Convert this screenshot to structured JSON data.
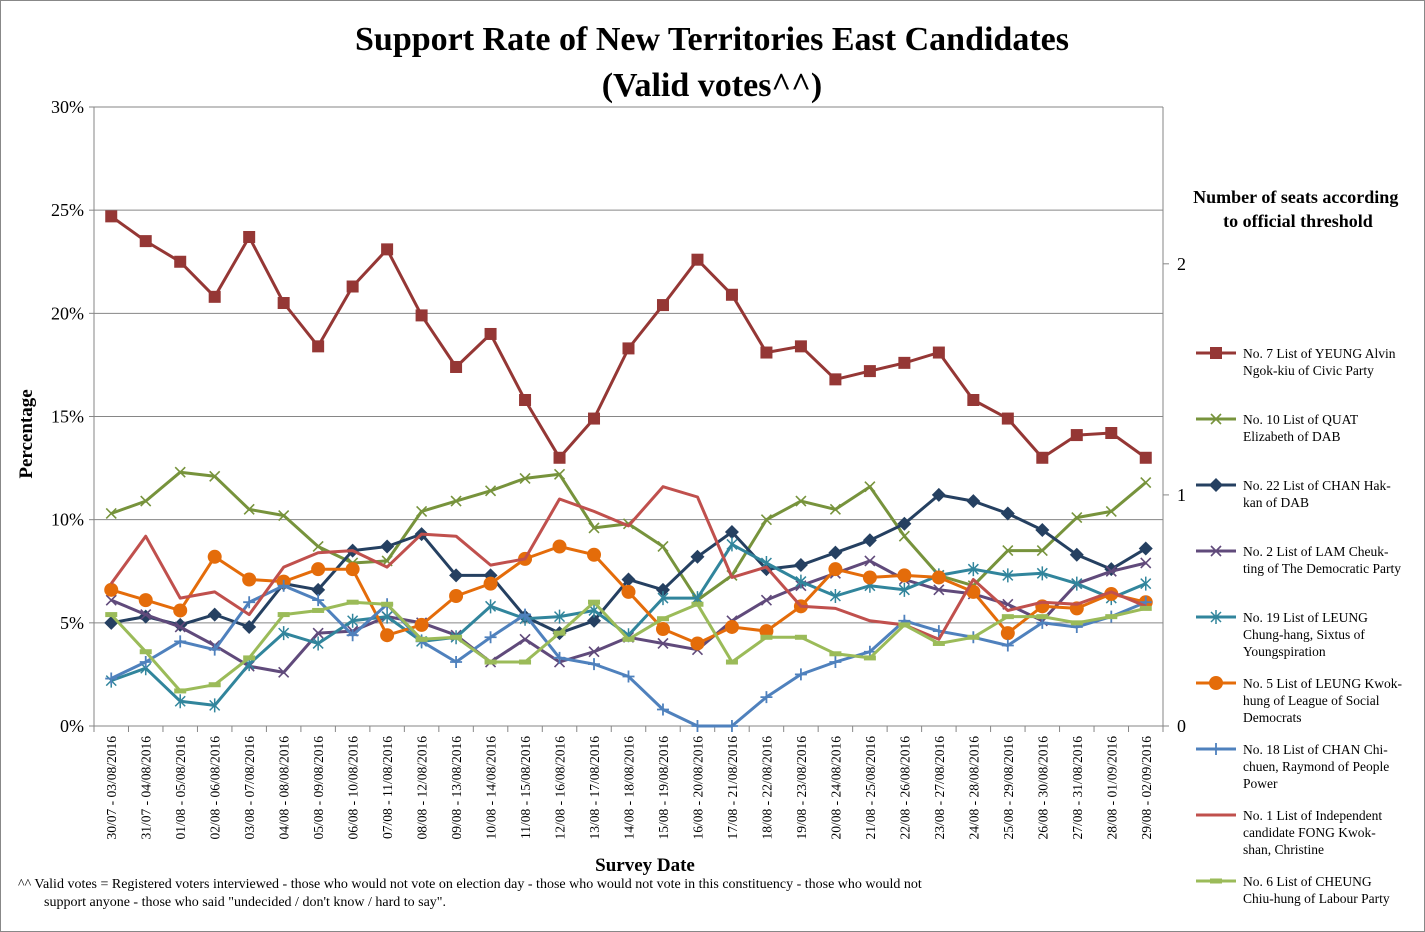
{
  "chart_data": {
    "type": "line",
    "title": "Support Rate of New Territories East Candidates",
    "subtitle": "(Valid votes^^)",
    "xlabel": "Survey Date",
    "ylabel": "Percentage",
    "y_left": {
      "min": 0,
      "max": 30,
      "ticks": [
        "0%",
        "5%",
        "10%",
        "15%",
        "20%",
        "25%",
        "30%"
      ]
    },
    "y_right": {
      "title": "Number of seats according to official threshold",
      "ticks": [
        "0",
        "1",
        "2"
      ],
      "seat_threshold_percent": 11.2
    },
    "grid": true,
    "legend_position": "right",
    "categories": [
      "30/07 - 03/08/2016",
      "31/07 - 04/08/2016",
      "01/08 - 05/08/2016",
      "02/08 - 06/08/2016",
      "03/08 - 07/08/2016",
      "04/08 - 08/08/2016",
      "05/08 - 09/08/2016",
      "06/08 - 10/08/2016",
      "07/08 - 11/08/2016",
      "08/08 - 12/08/2016",
      "09/08 - 13/08/2016",
      "10/08 - 14/08/2016",
      "11/08 - 15/08/2016",
      "12/08 - 16/08/2016",
      "13/08 - 17/08/2016",
      "14/08 - 18/08/2016",
      "15/08 - 19/08/2016",
      "16/08 - 20/08/2016",
      "17/08 - 21/08/2016",
      "18/08 - 22/08/2016",
      "19/08 - 23/08/2016",
      "20/08 - 24/08/2016",
      "21/08 - 25/08/2016",
      "22/08 - 26/08/2016",
      "23/08 - 27/08/2016",
      "24/08 - 28/08/2016",
      "25/08 - 29/08/2016",
      "26/08 - 30/08/2016",
      "27/08 - 31/08/2016",
      "28/08 - 01/09/2016",
      "29/08 - 02/09/2016"
    ],
    "series": [
      {
        "name": "No. 7 List of YEUNG Alvin Ngok-kiu of Civic Party",
        "color": "#953735",
        "marker": "square",
        "values": [
          24.7,
          23.5,
          22.5,
          20.8,
          23.7,
          20.5,
          18.4,
          21.3,
          23.1,
          19.9,
          17.4,
          19.0,
          15.8,
          13.0,
          14.9,
          18.3,
          20.4,
          22.6,
          20.9,
          18.1,
          18.4,
          16.8,
          17.2,
          17.6,
          18.1,
          15.8,
          14.9,
          13.0,
          14.1,
          14.2,
          13.0
        ]
      },
      {
        "name": "No. 10 List of QUAT Elizabeth of DAB",
        "color": "#77933c",
        "marker": "x",
        "values": [
          10.3,
          10.9,
          12.3,
          12.1,
          10.5,
          10.2,
          8.7,
          7.9,
          8.0,
          10.4,
          10.9,
          11.4,
          12.0,
          12.2,
          9.6,
          9.8,
          8.7,
          6.1,
          7.3,
          10.0,
          10.9,
          10.5,
          11.6,
          9.2,
          7.3,
          6.8,
          8.5,
          8.5,
          10.1,
          10.4,
          11.8
        ]
      },
      {
        "name": "No. 22 List of CHAN Hak-kan of DAB",
        "color": "#254061",
        "marker": "diamond",
        "values": [
          5.0,
          5.3,
          4.9,
          5.4,
          4.8,
          6.9,
          6.6,
          8.5,
          8.7,
          9.3,
          7.3,
          7.3,
          5.3,
          4.5,
          5.1,
          7.1,
          6.6,
          8.2,
          9.4,
          7.6,
          7.8,
          8.4,
          9.0,
          9.8,
          11.2,
          10.9,
          10.3,
          9.5,
          8.3,
          7.6,
          8.6
        ]
      },
      {
        "name": "No. 2 List of LAM Cheuk-ting of The Democratic Party",
        "color": "#604a7b",
        "marker": "x",
        "values": [
          6.1,
          5.4,
          4.8,
          3.9,
          2.9,
          2.6,
          4.5,
          4.6,
          5.3,
          5.0,
          4.4,
          3.1,
          4.2,
          3.1,
          3.6,
          4.3,
          4.0,
          3.7,
          5.1,
          6.1,
          6.8,
          7.4,
          8.0,
          7.1,
          6.6,
          6.4,
          5.9,
          5.1,
          6.9,
          7.5,
          7.9
        ]
      },
      {
        "name": "No. 19 List of LEUNG Chung-hang, Sixtus of Youngspiration",
        "color": "#31859c",
        "marker": "star",
        "values": [
          2.2,
          2.8,
          1.2,
          1.0,
          3.0,
          4.5,
          4.0,
          5.1,
          5.3,
          4.1,
          4.3,
          5.8,
          5.2,
          5.3,
          5.6,
          4.4,
          6.2,
          6.2,
          8.8,
          7.9,
          7.0,
          6.3,
          6.8,
          6.6,
          7.3,
          7.6,
          7.3,
          7.4,
          6.9,
          6.2,
          6.9
        ]
      },
      {
        "name": "No. 5 List of LEUNG Kwok-hung of League of Social Democrats",
        "color": "#e46c0a",
        "marker": "circle",
        "values": [
          6.6,
          6.1,
          5.6,
          8.2,
          7.1,
          7.0,
          7.6,
          7.6,
          4.4,
          4.9,
          6.3,
          6.9,
          8.1,
          8.7,
          8.3,
          6.5,
          4.7,
          4.0,
          4.8,
          4.6,
          5.8,
          7.6,
          7.2,
          7.3,
          7.2,
          6.5,
          4.5,
          5.8,
          5.7,
          6.4,
          6.0
        ]
      },
      {
        "name": "No. 18 List of CHAN Chi-chuen, Raymond of People Power",
        "color": "#4f81bd",
        "marker": "plus",
        "values": [
          2.3,
          3.1,
          4.1,
          3.7,
          6.0,
          6.8,
          6.1,
          4.4,
          5.9,
          4.1,
          3.1,
          4.3,
          5.4,
          3.3,
          3.0,
          2.4,
          0.8,
          0.0,
          0.0,
          1.4,
          2.5,
          3.1,
          3.6,
          5.1,
          4.6,
          4.3,
          3.9,
          5.0,
          4.8,
          5.3,
          6.0
        ]
      },
      {
        "name": "No. 1 List of Independent candidate FONG Kwok-shan, Christine",
        "color": "#c0504d",
        "marker": "none",
        "values": [
          6.9,
          9.2,
          6.2,
          6.5,
          5.4,
          7.7,
          8.4,
          8.5,
          7.7,
          9.3,
          9.2,
          7.8,
          8.1,
          11.0,
          10.4,
          9.7,
          11.6,
          11.1,
          7.2,
          7.7,
          5.8,
          5.7,
          5.1,
          4.9,
          4.2,
          7.1,
          5.6,
          6.0,
          5.9,
          6.5,
          5.8
        ]
      },
      {
        "name": "No. 6 List of CHEUNG Chiu-hung of Labour Party",
        "color": "#9bbb59",
        "marker": "dash",
        "values": [
          5.4,
          3.6,
          1.7,
          2.0,
          3.3,
          5.4,
          5.6,
          6.0,
          5.9,
          4.2,
          4.3,
          3.1,
          3.1,
          4.5,
          6.0,
          4.2,
          5.2,
          5.9,
          3.1,
          4.3,
          4.3,
          3.5,
          3.3,
          4.9,
          4.0,
          4.3,
          5.3,
          5.3,
          5.0,
          5.3,
          5.7
        ]
      }
    ]
  },
  "footnote": {
    "line1": "^^ Valid votes = Registered voters interviewed - those who would not vote on election day - those who would not vote in this constituency - those who would not",
    "line2": "support anyone - those who said \"undecided / don't know / hard to say\"."
  },
  "legend_labels": [
    [
      "No. 7 List of YEUNG Alvin",
      "Ngok-kiu of Civic Party"
    ],
    [
      "No. 10 List of QUAT",
      "Elizabeth of DAB"
    ],
    [
      "No. 22 List of CHAN Hak-",
      "kan of DAB"
    ],
    [
      "No. 2 List of LAM Cheuk-",
      "ting of The Democratic Party"
    ],
    [
      "No. 19 List of LEUNG",
      "Chung-hang, Sixtus of",
      "Youngspiration"
    ],
    [
      "No. 5 List of LEUNG Kwok-",
      "hung of League of Social",
      "Democrats"
    ],
    [
      "No. 18 List of CHAN Chi-",
      "chuen, Raymond of People",
      "Power"
    ],
    [
      "No. 1 List of Independent",
      "candidate FONG Kwok-",
      "shan, Christine"
    ],
    [
      "No. 6 List of CHEUNG",
      "Chiu-hung of Labour Party"
    ]
  ],
  "seat_title_lines": [
    "Number of seats according",
    "to official threshold"
  ]
}
